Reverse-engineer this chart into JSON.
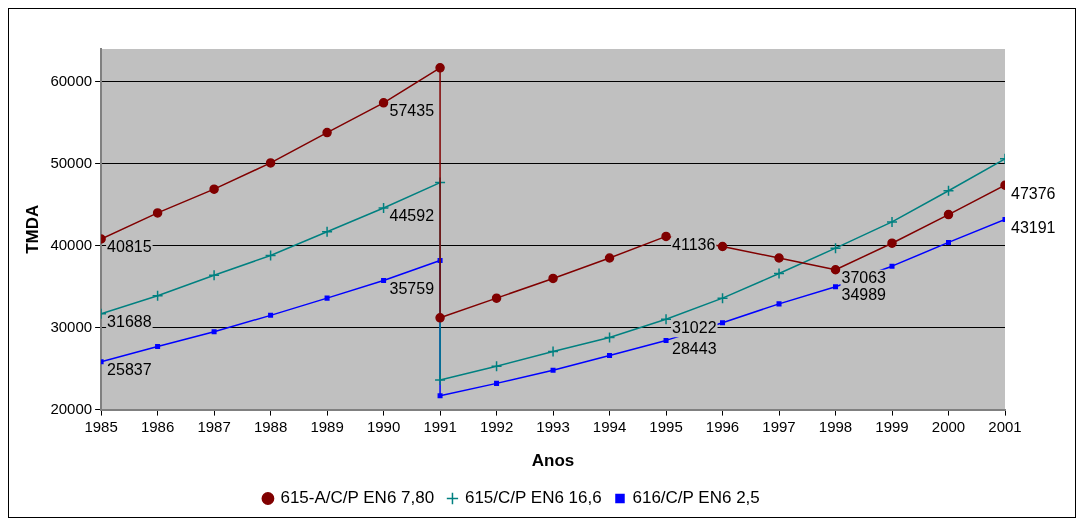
{
  "chart_data": {
    "type": "line",
    "xlabel": "Anos",
    "ylabel": "TMDA",
    "x": [
      1985,
      1986,
      1987,
      1988,
      1989,
      1990,
      1991,
      1991,
      1992,
      1993,
      1994,
      1995,
      1996,
      1997,
      1998,
      1999,
      2000,
      2001
    ],
    "xlim": [
      1985,
      2001
    ],
    "xticks": [
      1985,
      1986,
      1987,
      1988,
      1989,
      1990,
      1991,
      1992,
      1993,
      1994,
      1995,
      1996,
      1997,
      1998,
      1999,
      2000,
      2001
    ],
    "ylim": [
      20000,
      64000
    ],
    "yticks": [
      20000,
      30000,
      40000,
      50000,
      60000
    ],
    "grid": "y",
    "legend": "bottom",
    "series": [
      {
        "name": "615-A/C/P EN6 7,80",
        "color": "#800000",
        "marker": "circle",
        "values": [
          40815,
          44000,
          46900,
          50100,
          53800,
          57435,
          61700,
          31200,
          33600,
          36000,
          38500,
          41136,
          39900,
          38500,
          37063,
          40300,
          43800,
          47376
        ],
        "value_labels": [
          "40815",
          null,
          null,
          null,
          null,
          "57435",
          null,
          null,
          null,
          null,
          null,
          "41136",
          null,
          null,
          "37063",
          null,
          null,
          "47376"
        ]
      },
      {
        "name": "615/C/P EN6 16,6",
        "color": "#008080",
        "marker": "cross",
        "values": [
          31688,
          33900,
          36400,
          38800,
          41700,
          44592,
          47700,
          23600,
          25300,
          27100,
          28800,
          31022,
          33600,
          36600,
          39700,
          42900,
          46700,
          50600
        ],
        "value_labels": [
          "31688",
          null,
          null,
          null,
          null,
          "44592",
          null,
          null,
          null,
          null,
          null,
          "31022",
          null,
          null,
          null,
          null,
          null,
          null
        ]
      },
      {
        "name": "616/C/P EN6 2,5",
        "color": "#0000ff",
        "marker": "square",
        "values": [
          25837,
          27700,
          29500,
          31500,
          33600,
          35759,
          38200,
          21700,
          23200,
          24800,
          26600,
          28443,
          30600,
          32900,
          34989,
          37500,
          40400,
          43191
        ],
        "value_labels": [
          "25837",
          null,
          null,
          null,
          null,
          "35759",
          null,
          null,
          null,
          null,
          null,
          "28443",
          null,
          null,
          "34989",
          null,
          null,
          "43191"
        ]
      }
    ]
  }
}
